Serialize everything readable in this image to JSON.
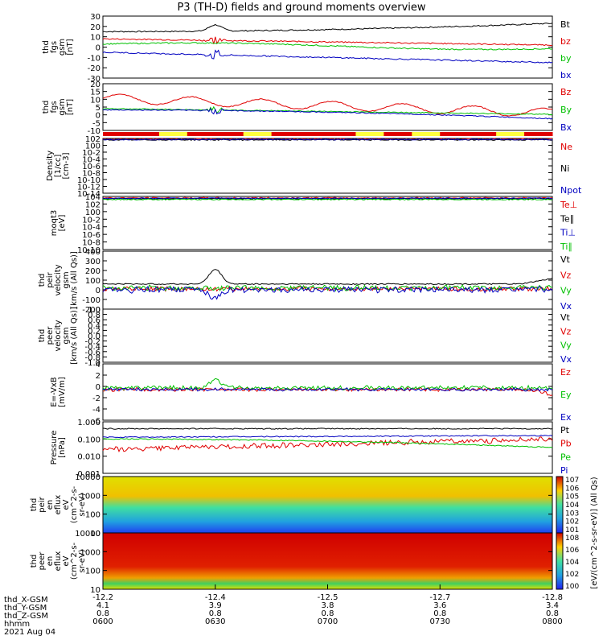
{
  "chart_data": {
    "type": "line",
    "title": "P3 (TH-D) fields and ground moments overview",
    "x_range": [
      "06:00",
      "08:00"
    ],
    "panels": [
      {
        "name": "fgs",
        "ylabel": [
          "thd",
          "fgs",
          "gsm",
          "[nT]"
        ],
        "yticks": [
          "30",
          "20",
          "10",
          "0",
          "-10",
          "-20",
          "-30"
        ],
        "series": [
          {
            "name": "Bt",
            "color": "#000000"
          },
          {
            "name": "bz",
            "color": "#e00000"
          },
          {
            "name": "by",
            "color": "#00c000"
          },
          {
            "name": "bx",
            "color": "#0000c0"
          }
        ]
      },
      {
        "name": "fgs-dsl",
        "ylabel": [
          "thd",
          "fgs",
          "gsm",
          "[nT]"
        ],
        "yticks": [
          "20",
          "15",
          "10",
          "5",
          "0",
          "-5",
          "-10"
        ],
        "series": [
          {
            "name": "Bz",
            "color": "#e00000"
          },
          {
            "name": "By",
            "color": "#00c000"
          },
          {
            "name": "Bx",
            "color": "#0000c0"
          }
        ]
      },
      {
        "name": "density",
        "ylabel": [
          "Density",
          "[1/cc]",
          "[cm-3]"
        ],
        "yticks": [
          "10^2",
          "10^0",
          "10^-2",
          "10^-4",
          "10^-6",
          "10^-8",
          "10^-10",
          "10^-12",
          "10^-14"
        ],
        "series": [
          {
            "name": "Ne",
            "color": "#e00000"
          },
          {
            "name": "Ni",
            "color": "#000000"
          },
          {
            "name": "Npot",
            "color": "#0000c0"
          }
        ]
      },
      {
        "name": "temperature",
        "ylabel": [
          "moqt3",
          "[eV]"
        ],
        "yticks": [
          "10^4",
          "10^2",
          "10^0",
          "10^-2",
          "10^-4",
          "10^-6",
          "10^-8",
          "10^-10"
        ],
        "series": [
          {
            "name": "Te⊥",
            "color": "#e00000"
          },
          {
            "name": "Te∥",
            "color": "#000000"
          },
          {
            "name": "Ti⊥",
            "color": "#0000c0"
          },
          {
            "name": "Ti∥",
            "color": "#00c000"
          }
        ]
      },
      {
        "name": "peir-velocity",
        "ylabel": [
          "thd",
          "peir",
          "velocity",
          "gsm",
          "[km/s (All Qs)]"
        ],
        "yticks": [
          "400",
          "300",
          "200",
          "100",
          "0",
          "-100",
          "-200"
        ],
        "series": [
          {
            "name": "Vt",
            "color": "#000000"
          },
          {
            "name": "Vz",
            "color": "#e00000"
          },
          {
            "name": "Vy",
            "color": "#00c000"
          },
          {
            "name": "Vx",
            "color": "#0000c0"
          }
        ]
      },
      {
        "name": "peer-velocity",
        "ylabel": [
          "thd",
          "peer",
          "velocity",
          "gsm",
          "[km/s (All Qs)]"
        ],
        "yticks": [
          "1.0",
          "0.8",
          "0.6",
          "0.4",
          "0.2",
          "0.0",
          "-0.2",
          "-0.4",
          "-0.6",
          "-0.8",
          "-1.0"
        ],
        "series": [
          {
            "name": "Vt",
            "color": "#000000"
          },
          {
            "name": "Vz",
            "color": "#e00000"
          },
          {
            "name": "Vy",
            "color": "#00c000"
          },
          {
            "name": "Vx",
            "color": "#0000c0"
          }
        ]
      },
      {
        "name": "efield",
        "ylabel": [
          "E=-VxB",
          "[mV/m]"
        ],
        "yticks": [
          "4",
          "2",
          "0",
          "-2",
          "-4",
          "-6"
        ],
        "series": [
          {
            "name": "Ez",
            "color": "#e00000"
          },
          {
            "name": "Ey",
            "color": "#00c000"
          },
          {
            "name": "Ex",
            "color": "#0000c0"
          }
        ]
      },
      {
        "name": "pressure",
        "ylabel": [
          "Pressure",
          "[nPa]"
        ],
        "yticks": [
          "1.000",
          "0.100",
          "0.010",
          "0.001"
        ],
        "series": [
          {
            "name": "Pt",
            "color": "#000000"
          },
          {
            "name": "Pb",
            "color": "#e00000"
          },
          {
            "name": "Pe",
            "color": "#00c000"
          },
          {
            "name": "Pi",
            "color": "#0000c0"
          }
        ]
      },
      {
        "name": "peir-eflux",
        "type": "heatmap",
        "ylabel": [
          "thd",
          "peir",
          "en",
          "eflux",
          "eV",
          "(cm^2-s-",
          "sr-eV)"
        ],
        "yticks": [
          "10000",
          "1000",
          "100",
          "10"
        ]
      },
      {
        "name": "peer-eflux",
        "type": "heatmap",
        "ylabel": [
          "thd",
          "peer",
          "en",
          "eflux",
          "eV",
          "(cm^2-s-",
          "sr-eV)"
        ],
        "yticks": [
          "10000",
          "1000",
          "100",
          "10"
        ]
      }
    ],
    "colorbar": {
      "top_ticks": [
        "10^7",
        "10^6",
        "10^5",
        "10^4",
        "10^3",
        "10^2",
        "10^1"
      ],
      "bottom_ticks": [
        "10^8",
        "10^6",
        "10^4",
        "10^2",
        "10^0"
      ],
      "label": "[eV/(cm^2-s-sr-eV)]  (All Qs)"
    },
    "x_axis": {
      "row_labels": [
        "thd_X-GSM",
        "thd_Y-GSM",
        "thd_Z-GSM",
        "hhmm",
        "2021 Aug 04"
      ],
      "columns": [
        [
          "-12.2",
          "4.1",
          "0.8",
          "0600"
        ],
        [
          "-12.4",
          "3.9",
          "0.8",
          "0630"
        ],
        [
          "-12.5",
          "3.8",
          "0.8",
          "0700"
        ],
        [
          "-12.7",
          "3.6",
          "0.8",
          "0730"
        ],
        [
          "-12.8",
          "3.4",
          "0.8",
          "0800"
        ]
      ]
    }
  }
}
